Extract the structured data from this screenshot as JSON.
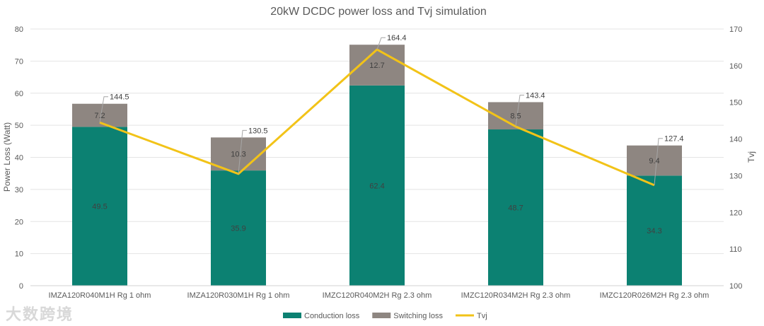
{
  "chart_data": {
    "type": "bar",
    "stacked": true,
    "title": "20kW DCDC power loss and Tvj simulation",
    "ylabel": "Power Loss (Watt)",
    "y2label": "Tvj",
    "ylim": [
      0,
      80
    ],
    "y2lim": [
      100,
      170
    ],
    "yticks": [
      0,
      10,
      20,
      30,
      40,
      50,
      60,
      70,
      80
    ],
    "y2ticks": [
      100,
      110,
      120,
      130,
      140,
      150,
      160,
      170
    ],
    "grid": true,
    "legend_position": "bottom",
    "categories": [
      "IMZA120R040M1H Rg 1 ohm",
      "IMZA120R030M1H Rg 1 ohm",
      "IMZC120R040M2H Rg 2.3 ohm",
      "IMZC120R034M2H Rg 2.3 ohm",
      "IMZC120R026M2H Rg 2.3 ohm"
    ],
    "series": [
      {
        "name": "Conduction loss",
        "type": "bar",
        "color": "#0c8172",
        "values": [
          49.5,
          35.9,
          62.4,
          48.7,
          34.3
        ]
      },
      {
        "name": "Switching loss",
        "type": "bar",
        "color": "#8e8681",
        "values": [
          7.2,
          10.3,
          12.7,
          8.5,
          9.4
        ]
      },
      {
        "name": "Tvj",
        "type": "line",
        "axis": "right",
        "color": "#f2c318",
        "values": [
          144.5,
          130.5,
          164.4,
          143.4,
          127.4
        ]
      }
    ]
  },
  "watermark": "大数跨境"
}
